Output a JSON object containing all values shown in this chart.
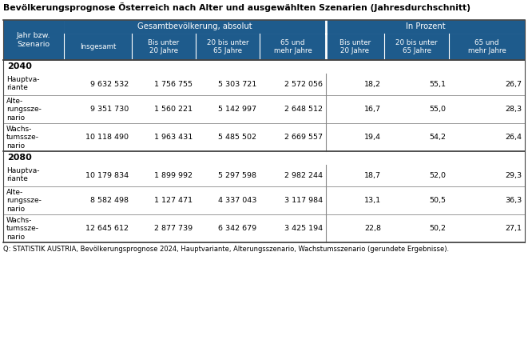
{
  "title": "Bevölkerungsprognose Österreich nach Alter und ausgewählten Szenarien (Jahresdurchschnitt)",
  "source": "Q: STATISTIK AUSTRIA, Bevölkerungsprognose 2024, Hauptvariante, Alterungsszenario, Wachstumsszenario (gerundete Ergebnisse).",
  "col_header1": "Gesamtbevölkerung, absolut",
  "col_header2": "In Prozent",
  "col_labels": [
    "Jahr bzw.\nSzenario",
    "Insgesamt",
    "Bis unter\n20 Jahre",
    "20 bis unter\n65 Jahre",
    "65 und\nmehr Jahre",
    "Bis unter\n20 Jahre",
    "20 bis unter\n65 Jahre",
    "65 und\nmehr Jahre"
  ],
  "header_bg": "#1e5b8c",
  "header_text": "#ffffff",
  "rows_2040": [
    [
      "Hauptva-\nriante",
      "9 632 532",
      "1 756 755",
      "5 303 721",
      "2 572 056",
      "18,2",
      "55,1",
      "26,7"
    ],
    [
      "Alte-\nrungssze-\nnario",
      "9 351 730",
      "1 560 221",
      "5 142 997",
      "2 648 512",
      "16,7",
      "55,0",
      "28,3"
    ],
    [
      "Wachs-\ntumssze-\nnario",
      "10 118 490",
      "1 963 431",
      "5 485 502",
      "2 669 557",
      "19,4",
      "54,2",
      "26,4"
    ]
  ],
  "rows_2080": [
    [
      "Hauptva-\nriante",
      "10 179 834",
      "1 899 992",
      "5 297 598",
      "2 982 244",
      "18,7",
      "52,0",
      "29,3"
    ],
    [
      "Alte-\nrungssze-\nnario",
      "8 582 498",
      "1 127 471",
      "4 337 043",
      "3 117 984",
      "13,1",
      "50,5",
      "36,3"
    ],
    [
      "Wachs-\ntumssze-\nnario",
      "12 645 612",
      "2 877 739",
      "6 342 679",
      "3 425 194",
      "22,8",
      "50,2",
      "27,1"
    ]
  ]
}
